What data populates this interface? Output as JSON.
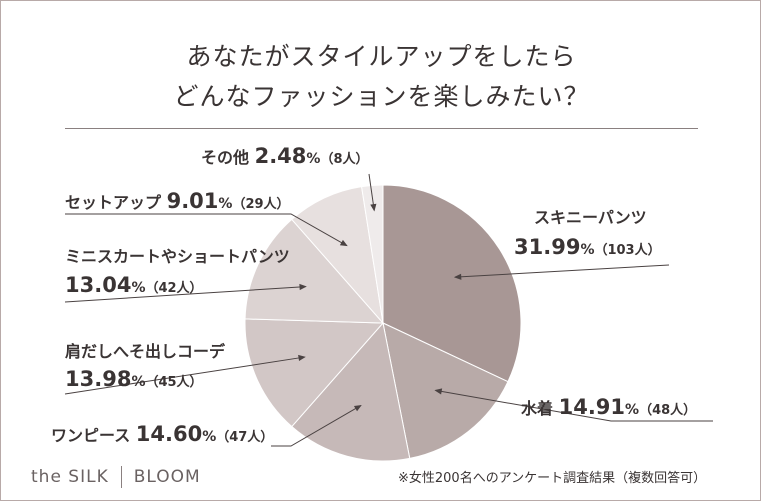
{
  "title_line1": "あなたがスタイルアップをしたら",
  "title_line2": "どんなファッションを楽しみたい？",
  "footer": {
    "brand_left": "the SILK",
    "brand_right": "BLOOM",
    "note": "※女性200名へのアンケート調査結果（複数回答可）"
  },
  "chart_data": {
    "type": "pie",
    "unit_percent": "%",
    "slices": [
      {
        "label": "スキニーパンツ",
        "value": 31.99,
        "value_text": "31.99",
        "count_text": "（103人）",
        "color": "#a89795"
      },
      {
        "label": "水着",
        "value": 14.91,
        "value_text": "14.91",
        "count_text": "（48人）",
        "color": "#b8aaa8"
      },
      {
        "label": "ワンピース",
        "value": 14.6,
        "value_text": "14.60",
        "count_text": "（47人）",
        "color": "#c6b9b8"
      },
      {
        "label": "肩だしへそ出しコーデ",
        "value": 13.98,
        "value_text": "13.98",
        "count_text": "（45人）",
        "color": "#d2c7c6"
      },
      {
        "label": "ミニスカートやショートパンツ",
        "value": 13.04,
        "value_text": "13.04",
        "count_text": "（42人）",
        "color": "#dcd3d2"
      },
      {
        "label": "セットアップ",
        "value": 9.01,
        "value_text": "9.01",
        "count_text": "（29人）",
        "color": "#e7e0df"
      },
      {
        "label": "その他",
        "value": 2.48,
        "value_text": "2.48",
        "count_text": "（8人）",
        "color": "#efebeb"
      }
    ]
  }
}
